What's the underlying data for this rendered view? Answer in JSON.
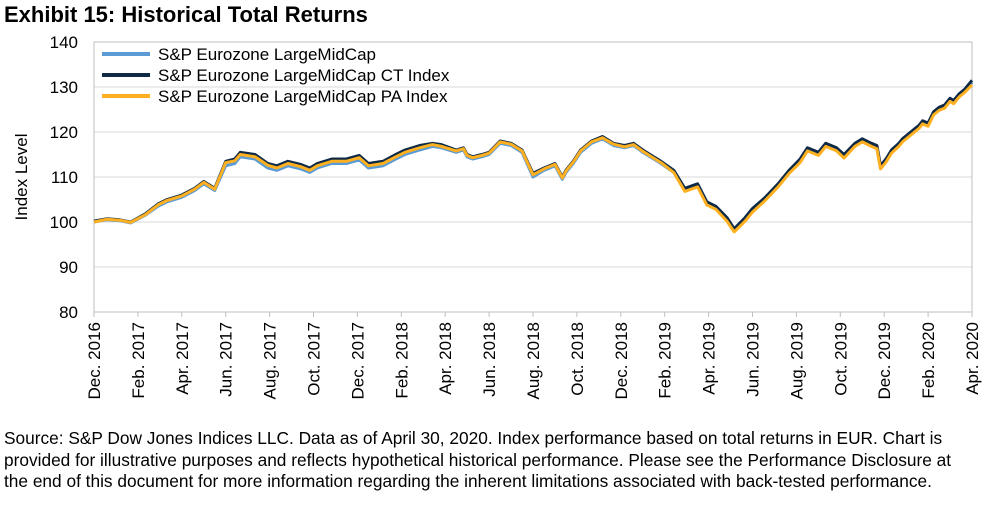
{
  "title": "Exhibit 15: Historical Total Returns",
  "source": "Source: S&P Dow Jones Indices LLC.  Data as of April 30, 2020.  Index performance based on total returns in EUR.  Chart is provided for illustrative purposes and reflects hypothetical historical performance.  Please see the Performance Disclosure at the end of this document for more information regarding the inherent limitations associated with back-tested performance.",
  "chart_data": {
    "type": "line",
    "title": "Exhibit 15: Historical Total Returns",
    "xlabel": "",
    "ylabel": "Index Level",
    "ylim": [
      80,
      140
    ],
    "yticks": [
      80,
      90,
      100,
      110,
      120,
      130,
      140
    ],
    "grid": true,
    "legend_position": "top-left",
    "categories": [
      "Dec. 2016",
      "Feb. 2017",
      "Apr. 2017",
      "Jun. 2017",
      "Aug. 2017",
      "Oct. 2017",
      "Dec. 2017",
      "Feb. 2018",
      "Apr. 2018",
      "Jun. 2018",
      "Aug. 2018",
      "Oct. 2018",
      "Dec. 2018",
      "Feb. 2019",
      "Apr. 2019",
      "Jun. 2019",
      "Aug. 2019",
      "Oct. 2019",
      "Dec. 2019",
      "Feb. 2020",
      "Apr. 2020"
    ],
    "x": [
      0,
      0.7,
      1.4,
      2,
      2.8,
      3.5,
      4,
      4.8,
      5.5,
      6,
      6.6,
      7.2,
      7.7,
      8,
      8.8,
      9.5,
      10,
      10.6,
      11.3,
      11.8,
      12.2,
      13,
      13.8,
      14.5,
      15,
      15.8,
      16.5,
      17,
      17.8,
      18.5,
      19,
      19.8,
      20.2,
      20.4,
      20.7,
      21.2,
      21.6,
      22.2,
      22.8,
      23.4,
      24,
      24.6,
      25.2,
      25.6,
      25.8,
      26.2,
      26.6,
      27.2,
      27.8,
      28.4,
      29,
      29.5,
      30,
      30.6,
      31,
      31.7,
      32.3,
      33,
      33.5,
      34,
      34.6,
      35,
      35.6,
      36,
      36.7,
      37.4,
      38,
      38.6,
      39,
      39.6,
      40,
      40.6,
      41,
      41.6,
      42,
      42.5,
      42.8,
      43,
      43.3,
      43.6,
      44,
      44.2,
      44.5,
      44.8,
      45.1,
      45.3,
      45.6,
      45.9,
      46.2,
      46.5,
      46.8,
      47,
      47.3,
      47.6,
      48
    ],
    "series": [
      {
        "name": "S&P Eurozone LargeMidCap",
        "color": "#5b9bd5",
        "values": [
          100.0,
          100.5,
          100.3,
          99.8,
          101.5,
          103.5,
          104.5,
          105.5,
          107.0,
          108.5,
          107.0,
          112.5,
          113.0,
          114.5,
          114.0,
          112.0,
          111.5,
          112.5,
          111.8,
          111.0,
          112.0,
          113.0,
          113.0,
          113.8,
          112.0,
          112.5,
          114.0,
          115.0,
          116.0,
          116.8,
          116.5,
          115.5,
          116.0,
          114.5,
          114.0,
          114.5,
          115.0,
          117.5,
          117.0,
          115.5,
          110.0,
          111.5,
          112.5,
          109.5,
          111.0,
          113.0,
          115.5,
          117.5,
          118.5,
          117.0,
          116.5,
          117.0,
          115.5,
          114.0,
          113.0,
          111.0,
          107.0,
          108.0,
          104.0,
          103.0,
          100.5,
          98.0,
          100.5,
          102.5,
          105.0,
          108.0,
          111.0,
          113.5,
          116.0,
          115.0,
          117.0,
          116.0,
          114.5,
          117.0,
          118.0,
          117.0,
          116.5,
          112.0,
          113.5,
          115.5,
          117.0,
          118.0,
          119.0,
          120.0,
          121.0,
          122.0,
          121.5,
          124.0,
          125.0,
          125.5,
          127.0,
          126.5,
          128.0,
          129.0,
          131.0
        ]
      },
      {
        "name": "S&P Eurozone LargeMidCap CT Index",
        "color": "#0e2a47",
        "values": [
          100.2,
          100.7,
          100.5,
          100.0,
          101.8,
          104.0,
          105.0,
          106.0,
          107.5,
          109.0,
          107.5,
          113.5,
          114.0,
          115.5,
          115.0,
          113.0,
          112.5,
          113.5,
          112.8,
          112.0,
          113.0,
          114.0,
          114.0,
          114.8,
          113.0,
          113.5,
          115.0,
          116.0,
          117.0,
          117.5,
          117.2,
          116.0,
          116.5,
          115.0,
          114.5,
          115.0,
          115.5,
          118.0,
          117.5,
          116.0,
          110.8,
          112.0,
          113.0,
          110.0,
          111.5,
          113.5,
          116.0,
          118.0,
          119.0,
          117.5,
          117.0,
          117.5,
          116.0,
          114.5,
          113.5,
          111.5,
          107.5,
          108.5,
          104.5,
          103.5,
          101.0,
          98.5,
          101.0,
          103.0,
          105.5,
          108.5,
          111.5,
          114.0,
          116.5,
          115.5,
          117.5,
          116.5,
          115.0,
          117.5,
          118.5,
          117.5,
          117.0,
          112.5,
          114.0,
          116.0,
          117.5,
          118.5,
          119.5,
          120.5,
          121.5,
          122.5,
          122.0,
          124.5,
          125.5,
          126.0,
          127.5,
          127.0,
          128.5,
          129.5,
          131.5
        ]
      },
      {
        "name": "S&P Eurozone LargeMidCap PA Index",
        "color": "#ffb020",
        "values": [
          100.0,
          100.6,
          100.4,
          99.9,
          101.6,
          103.8,
          104.8,
          105.8,
          107.3,
          108.8,
          107.3,
          113.2,
          113.6,
          115.0,
          114.5,
          112.6,
          112.0,
          113.0,
          112.3,
          111.5,
          112.5,
          113.5,
          113.5,
          114.3,
          112.5,
          113.0,
          114.5,
          115.5,
          116.5,
          117.2,
          116.8,
          115.8,
          116.3,
          114.8,
          114.3,
          114.8,
          115.3,
          117.8,
          117.3,
          115.8,
          110.5,
          111.8,
          112.8,
          109.8,
          111.3,
          113.3,
          115.8,
          117.8,
          118.7,
          117.3,
          116.7,
          117.2,
          115.7,
          114.2,
          113.2,
          111.0,
          106.8,
          107.8,
          103.8,
          102.8,
          100.2,
          97.8,
          100.2,
          102.2,
          104.8,
          107.8,
          110.8,
          113.2,
          115.8,
          114.8,
          116.8,
          115.8,
          114.2,
          116.8,
          117.8,
          116.8,
          116.3,
          111.8,
          113.3,
          115.3,
          116.8,
          117.8,
          118.8,
          119.8,
          120.8,
          121.8,
          121.3,
          123.8,
          124.8,
          125.3,
          126.8,
          126.3,
          127.8,
          128.8,
          130.5
        ]
      }
    ]
  }
}
